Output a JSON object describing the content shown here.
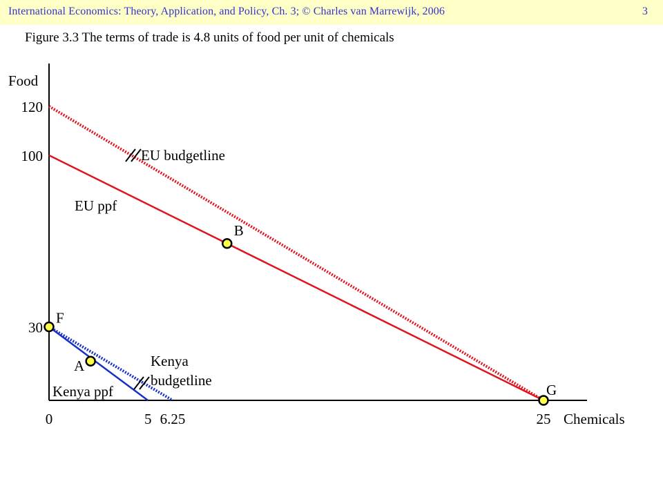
{
  "header": {
    "text": "International Economics: Theory, Application, and Policy, Ch. 3;  © Charles van Marrewijk, 2006",
    "page_number": "3"
  },
  "figure": {
    "title": "Figure 3.3 The terms of trade is 4.8 units of food per unit of chemicals"
  },
  "colors": {
    "header_bg": "#ffffc8",
    "header_text": "#3333cc",
    "eu": "#e0141e",
    "kenya": "#1530c8",
    "point_fill": "#ffff4d"
  },
  "chart_data": {
    "type": "line",
    "xlabel": "Chemicals",
    "ylabel": "Food",
    "xlim": [
      0,
      27
    ],
    "ylim": [
      0,
      135
    ],
    "x_ticks": [
      {
        "value": 0,
        "label": "0"
      },
      {
        "value": 5,
        "label": "5"
      },
      {
        "value": 6.25,
        "label": "6.25"
      },
      {
        "value": 25,
        "label": "25"
      }
    ],
    "y_ticks": [
      {
        "value": 120,
        "label": "120"
      },
      {
        "value": 100,
        "label": "100"
      },
      {
        "value": 30,
        "label": "30"
      }
    ],
    "series": [
      {
        "name": "EU ppf",
        "style": "solid",
        "color": "eu",
        "points": [
          [
            0,
            100
          ],
          [
            25,
            0
          ]
        ]
      },
      {
        "name": "EU budgetline",
        "style": "dotted",
        "color": "eu",
        "points": [
          [
            0,
            120
          ],
          [
            25,
            0
          ]
        ]
      },
      {
        "name": "Kenya ppf",
        "style": "solid",
        "color": "kenya",
        "points": [
          [
            0,
            30
          ],
          [
            5,
            0
          ]
        ]
      },
      {
        "name": "Kenya budgetline",
        "style": "dotted",
        "color": "kenya",
        "points": [
          [
            0,
            30
          ],
          [
            6.25,
            0
          ]
        ]
      }
    ],
    "points": [
      {
        "label": "B",
        "x": 9,
        "y": 64
      },
      {
        "label": "G",
        "x": 25,
        "y": 0
      },
      {
        "label": "F",
        "x": 0,
        "y": 30
      },
      {
        "label": "A",
        "x": 2.1,
        "y": 16
      }
    ],
    "annotations": [
      {
        "text": "EU budgetline",
        "parallel_mark": true
      },
      {
        "text": "EU ppf"
      },
      {
        "text": "Kenya budgetline",
        "lines": [
          "Kenya",
          "budgetline"
        ],
        "parallel_mark": true
      },
      {
        "text": "Kenya ppf"
      }
    ]
  }
}
